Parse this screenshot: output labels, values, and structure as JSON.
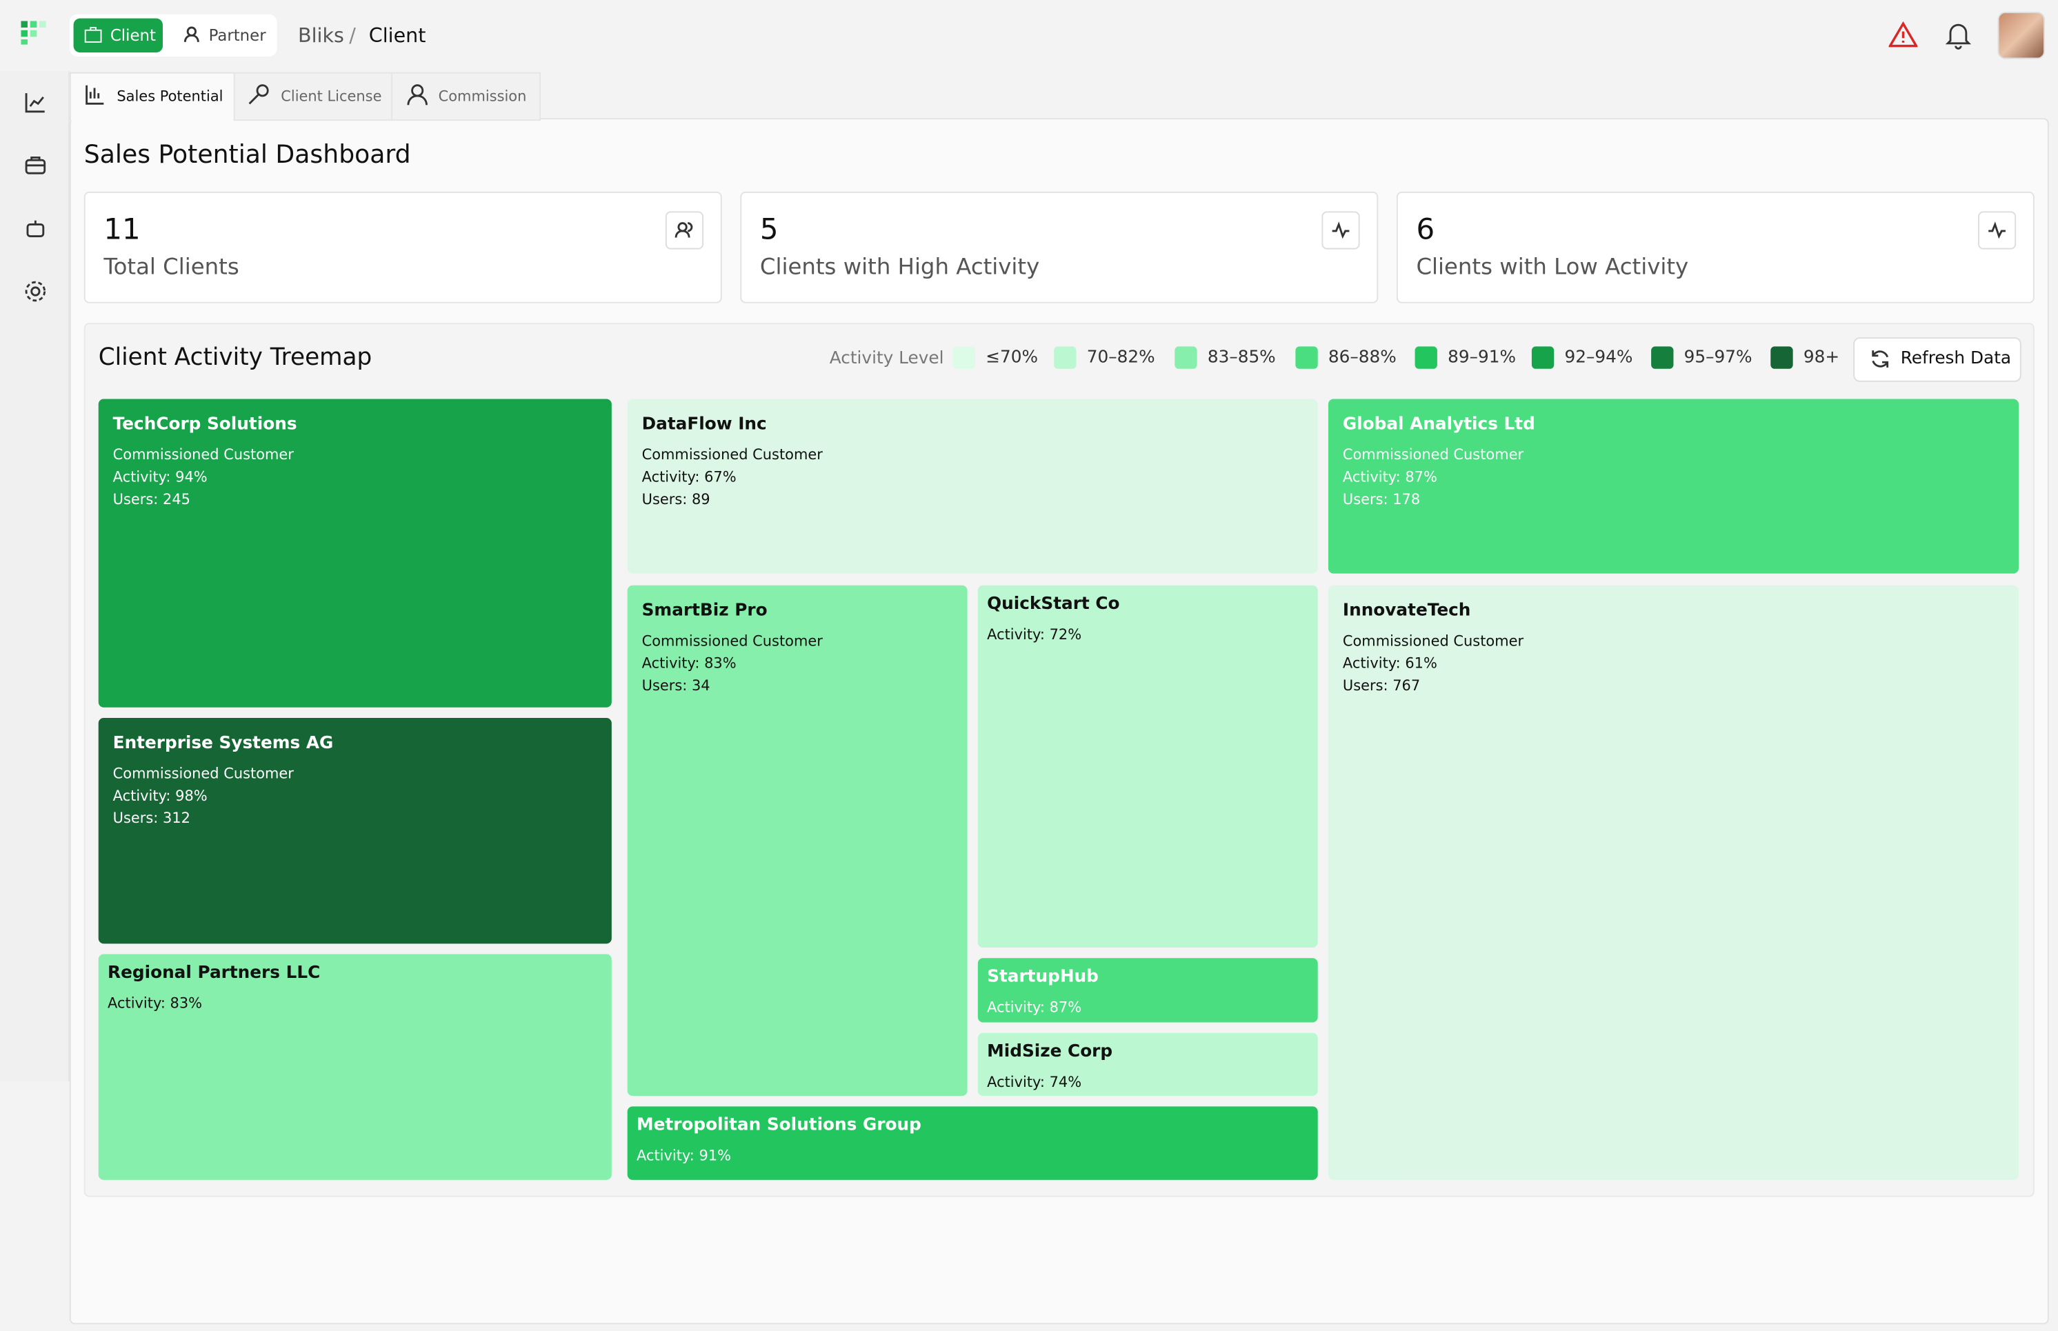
{
  "nav": {
    "tabs": [
      "Client",
      "Partner"
    ],
    "breadcrumb": [
      "Bliks",
      "/",
      "Client"
    ]
  },
  "subtabs": [
    "Sales Potential",
    "Client License",
    "Commission"
  ],
  "title": "Sales Potential Dashboard",
  "cards": [
    {
      "value": 11,
      "label": "Total Clients"
    },
    {
      "value": 5,
      "label": "Clients with High Activity"
    },
    {
      "value": 6,
      "label": "Clients with Low Activity"
    }
  ],
  "treemap": {
    "title": "Client Activity Treemap",
    "legend_title": "Activity Level",
    "legend": [
      {
        "label": "≤70%",
        "color": "#dcfce7"
      },
      {
        "label": "70–82%",
        "color": "#bbf7d0"
      },
      {
        "label": "83–85%",
        "color": "#86efac"
      },
      {
        "label": "86–88%",
        "color": "#4ade80"
      },
      {
        "label": "89–91%",
        "color": "#22c55e"
      },
      {
        "label": "92–94%",
        "color": "#16a34a"
      },
      {
        "label": "95–97%",
        "color": "#15803d"
      },
      {
        "label": "98+",
        "color": "#166534"
      }
    ],
    "button": "Refresh Data",
    "tiles": [
      {
        "name": "TechCorp Solutions",
        "subtitle": "Commissioned Customer",
        "activity": "Activity: 94%",
        "users": "Users: 245",
        "color": "#16a34a"
      },
      {
        "name": "Enterprise Systems AG",
        "subtitle": "Commissioned Customer",
        "activity": "Activity: 98%",
        "users": "Users: 312",
        "color": "#166534"
      },
      {
        "name": "Regional Partners LLC",
        "activity": "Activity: 83%",
        "color": "#86efac"
      },
      {
        "name": "DataFlow Inc",
        "subtitle": "Commissioned Customer",
        "activity": "Activity: 67%",
        "users": "Users: 89",
        "color": "#dcf7e6"
      },
      {
        "name": "SmartBiz Pro",
        "subtitle": "Commissioned Customer",
        "activity": "Activity: 83%",
        "users": "Users: 34",
        "color": "#86efac"
      },
      {
        "name": "QuickStart Co",
        "activity": "Activity: 72%",
        "color": "#bbf7d0"
      },
      {
        "name": "StartupHub",
        "activity": "Activity: 87%",
        "color": "#4ade80"
      },
      {
        "name": "MidSize Corp",
        "activity": "Activity: 74%",
        "color": "#bbf7d0"
      },
      {
        "name": "Metropolitan Solutions Group",
        "activity": "Activity: 91%",
        "color": "#22c55e"
      },
      {
        "name": "Global Analytics Ltd",
        "subtitle": "Commissioned Customer",
        "activity": "Activity: 87%",
        "users": "Users: 178",
        "color": "#4ade80"
      },
      {
        "name": "InnovateTech",
        "subtitle": "Commissioned Customer",
        "activity": "Activity: 61%",
        "users": "Users: 767",
        "color": "#dcf7e6"
      }
    ]
  }
}
